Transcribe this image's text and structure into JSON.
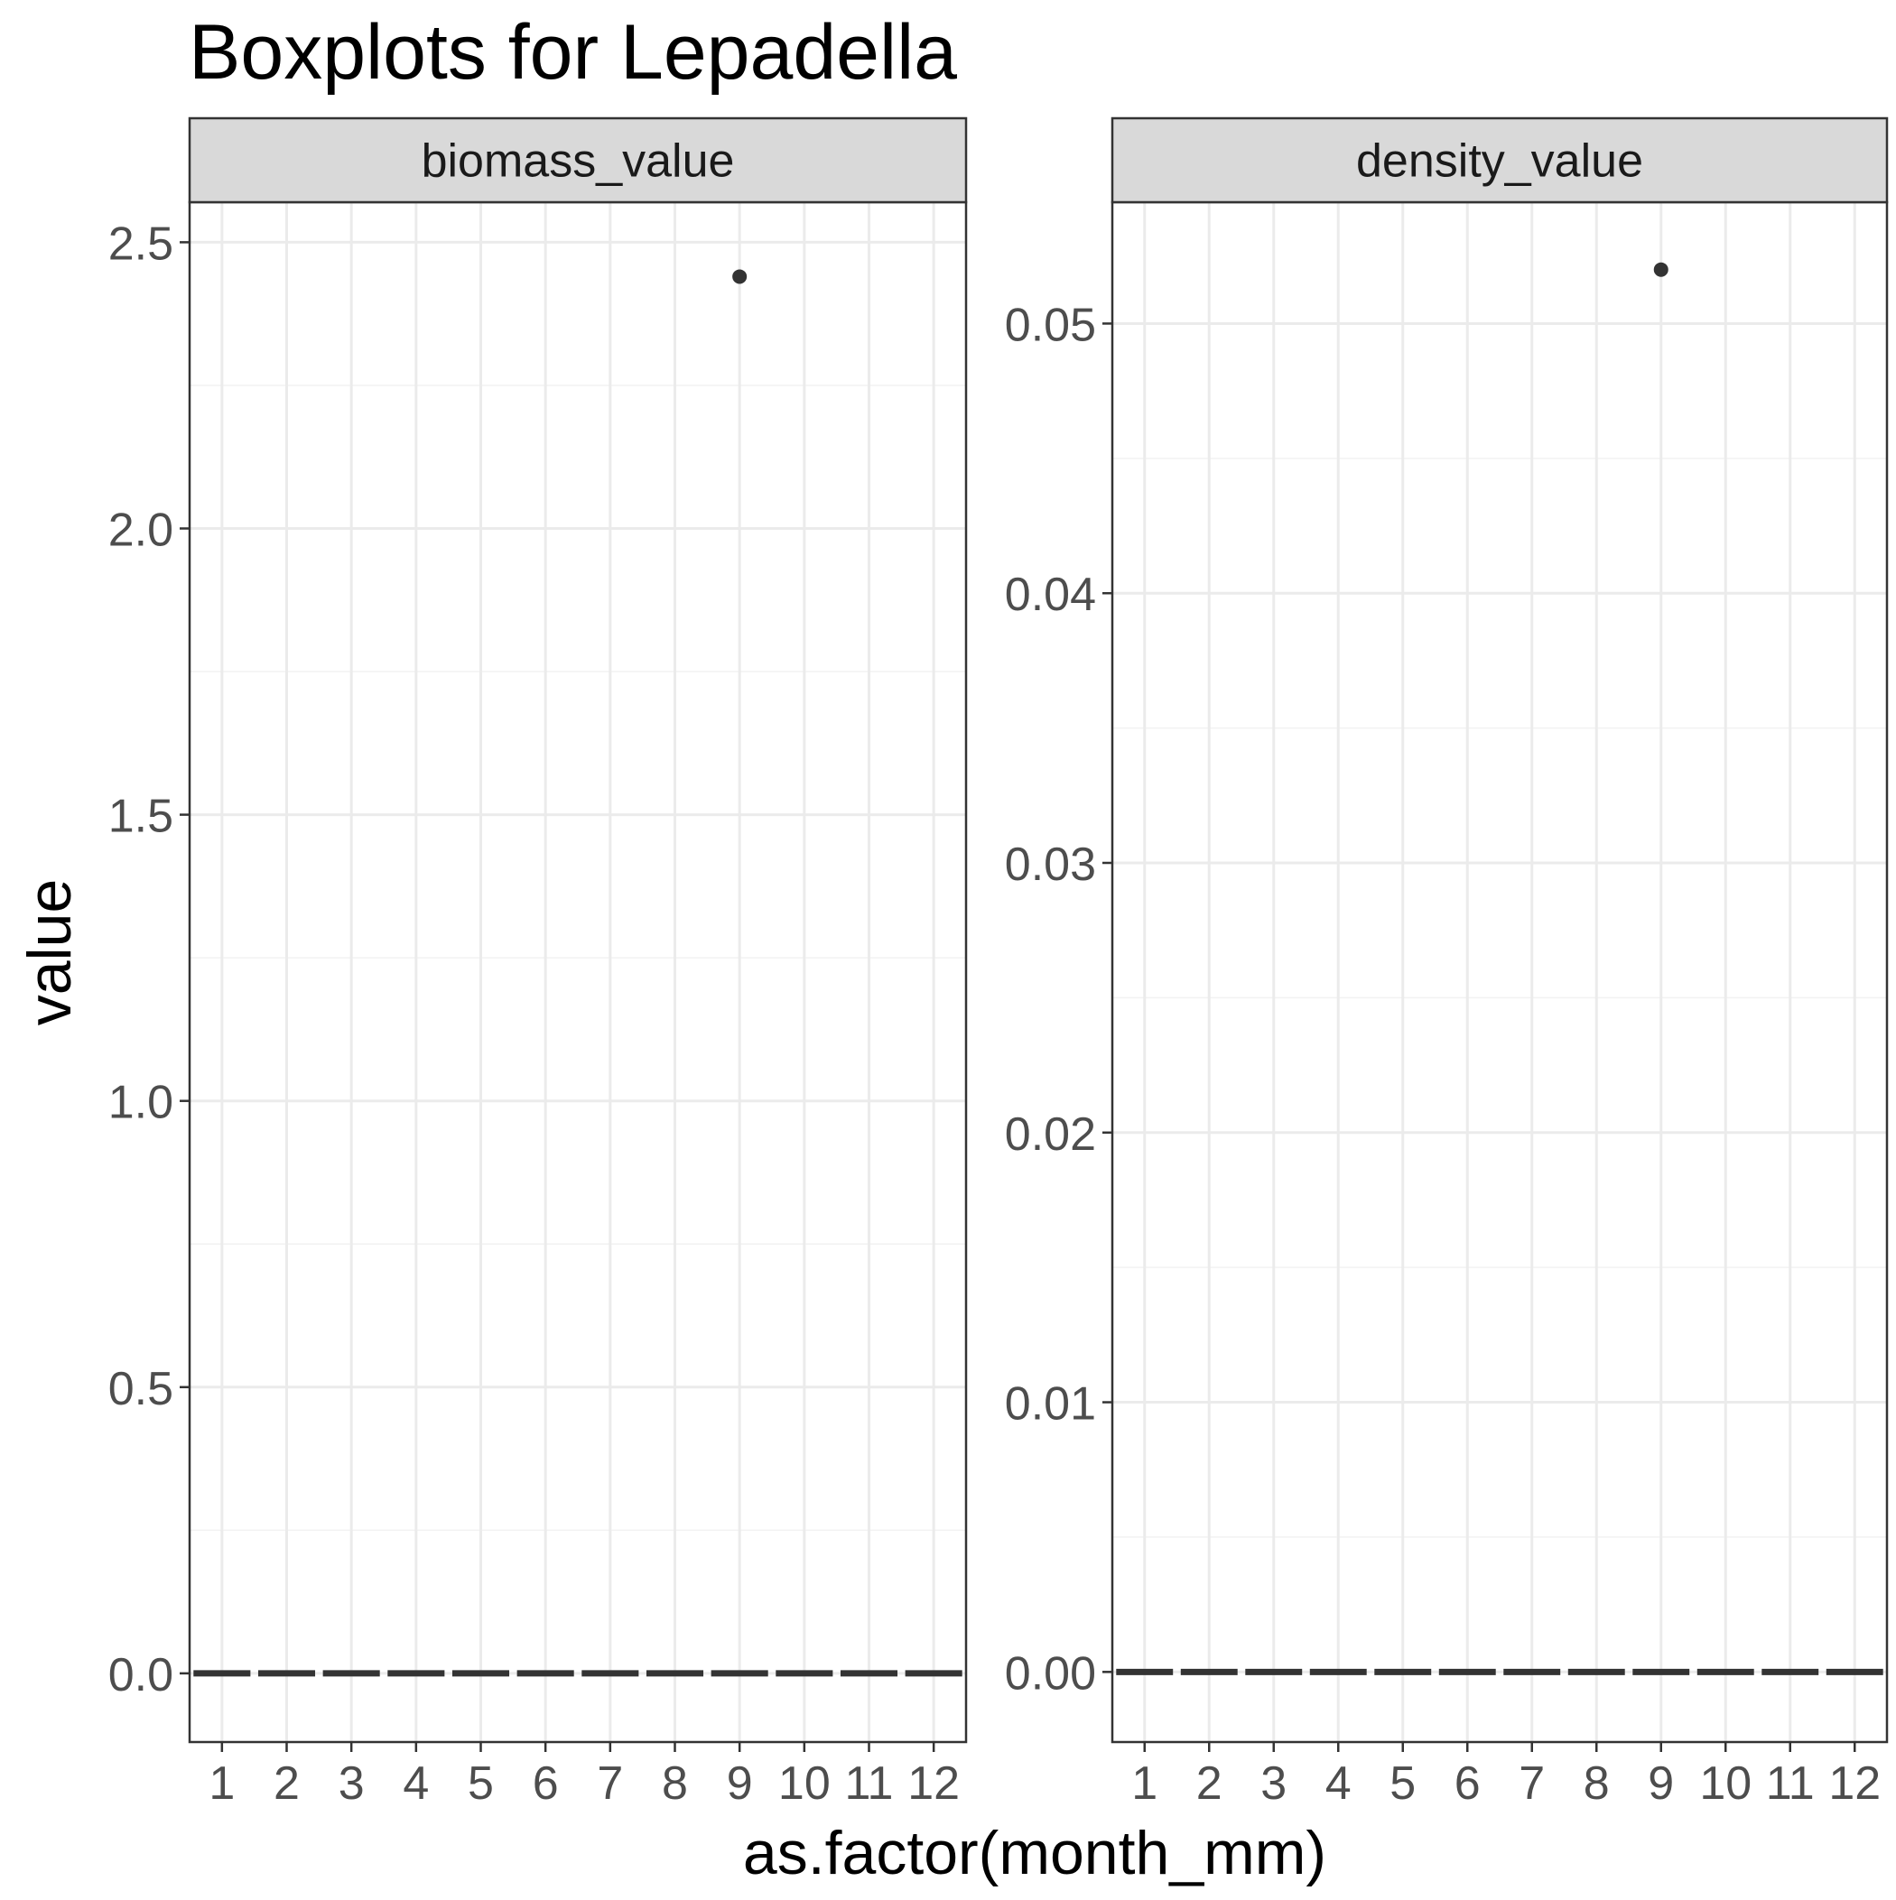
{
  "chart_data": {
    "type": "boxplot",
    "title": "Boxplots for Lepadella",
    "xlabel": "as.factor(month_mm)",
    "ylabel": "value",
    "categories": [
      "1",
      "2",
      "3",
      "4",
      "5",
      "6",
      "7",
      "8",
      "9",
      "10",
      "11",
      "12"
    ],
    "grid": true,
    "facets": [
      {
        "name": "biomass_value",
        "ylim": [
          -0.12,
          2.57
        ],
        "yticks": [
          0.0,
          0.5,
          1.0,
          1.5,
          2.0,
          2.5
        ],
        "ytick_labels": [
          "0.0",
          "0.5",
          "1.0",
          "1.5",
          "2.0",
          "2.5"
        ],
        "medians": [
          0,
          0,
          0,
          0,
          0,
          0,
          0,
          0,
          0,
          0,
          0,
          0
        ],
        "outliers": [
          {
            "category": "9",
            "value": 2.44
          }
        ]
      },
      {
        "name": "density_value",
        "ylim": [
          -0.0026,
          0.0545
        ],
        "yticks": [
          0.0,
          0.01,
          0.02,
          0.03,
          0.04,
          0.05
        ],
        "ytick_labels": [
          "0.00",
          "0.01",
          "0.02",
          "0.03",
          "0.04",
          "0.05"
        ],
        "medians": [
          0,
          0,
          0,
          0,
          0,
          0,
          0,
          0,
          0,
          0,
          0,
          0
        ],
        "outliers": [
          {
            "category": "9",
            "value": 0.052
          }
        ]
      }
    ],
    "colors": {
      "strip_fill": "#d9d9d9",
      "panel_border": "#333333",
      "grid_major": "#ebebeb",
      "grid_minor": "#f2f2f2",
      "box": "#333333",
      "tick_text": "#4d4d4d",
      "title_text": "#000000"
    }
  }
}
